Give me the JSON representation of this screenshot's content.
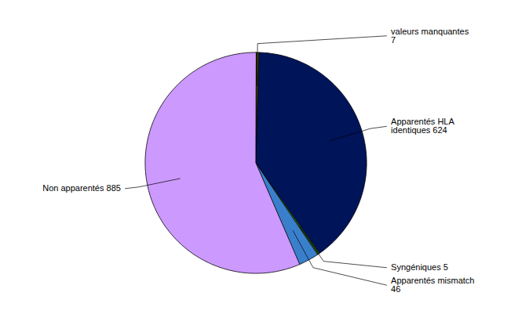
{
  "chart_data": {
    "type": "pie",
    "labels": [
      "valeurs manquantes\n7",
      "Apparentés HLA\nidentiques 624",
      "Syngéniques 5",
      "Apparentés mismatch\n46",
      "Non apparentés 885"
    ],
    "values": [
      7,
      624,
      5,
      46,
      885
    ],
    "colors": [
      "#4a4a00",
      "#00145a",
      "#2d6a00",
      "#3a7fcc",
      "#cc99ff"
    ]
  }
}
